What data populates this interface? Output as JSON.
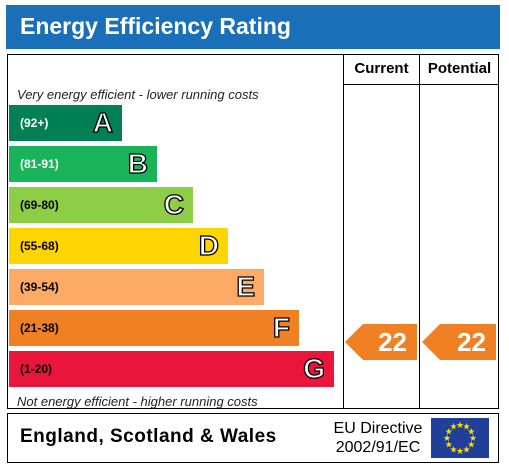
{
  "title": "Energy Efficiency Rating",
  "columns": {
    "current": "Current",
    "potential": "Potential"
  },
  "top_note": "Very energy efficient - lower running costs",
  "bottom_note": "Not energy efficient - higher running costs",
  "bands": [
    {
      "range": "(92+)",
      "letter": "A",
      "color": "#008054",
      "text_color": "#ffffff"
    },
    {
      "range": "(81-91)",
      "letter": "B",
      "color": "#19b459",
      "text_color": "#ffffff"
    },
    {
      "range": "(69-80)",
      "letter": "C",
      "color": "#8dce46",
      "text_color": "#000000"
    },
    {
      "range": "(55-68)",
      "letter": "D",
      "color": "#ffd500",
      "text_color": "#000000"
    },
    {
      "range": "(39-54)",
      "letter": "E",
      "color": "#fcaa65",
      "text_color": "#000000"
    },
    {
      "range": "(21-38)",
      "letter": "F",
      "color": "#ef8023",
      "text_color": "#000000"
    },
    {
      "range": "(1-20)",
      "letter": "G",
      "color": "#e9153b",
      "text_color": "#000000"
    }
  ],
  "ratings": {
    "current": "22",
    "potential": "22",
    "arrow_color": "#ef8023"
  },
  "footer": {
    "region": "England, Scotland & Wales",
    "directive_line1": "EU Directive",
    "directive_line2": "2002/91/EC"
  },
  "flag_icon": "eu-flag-icon"
}
